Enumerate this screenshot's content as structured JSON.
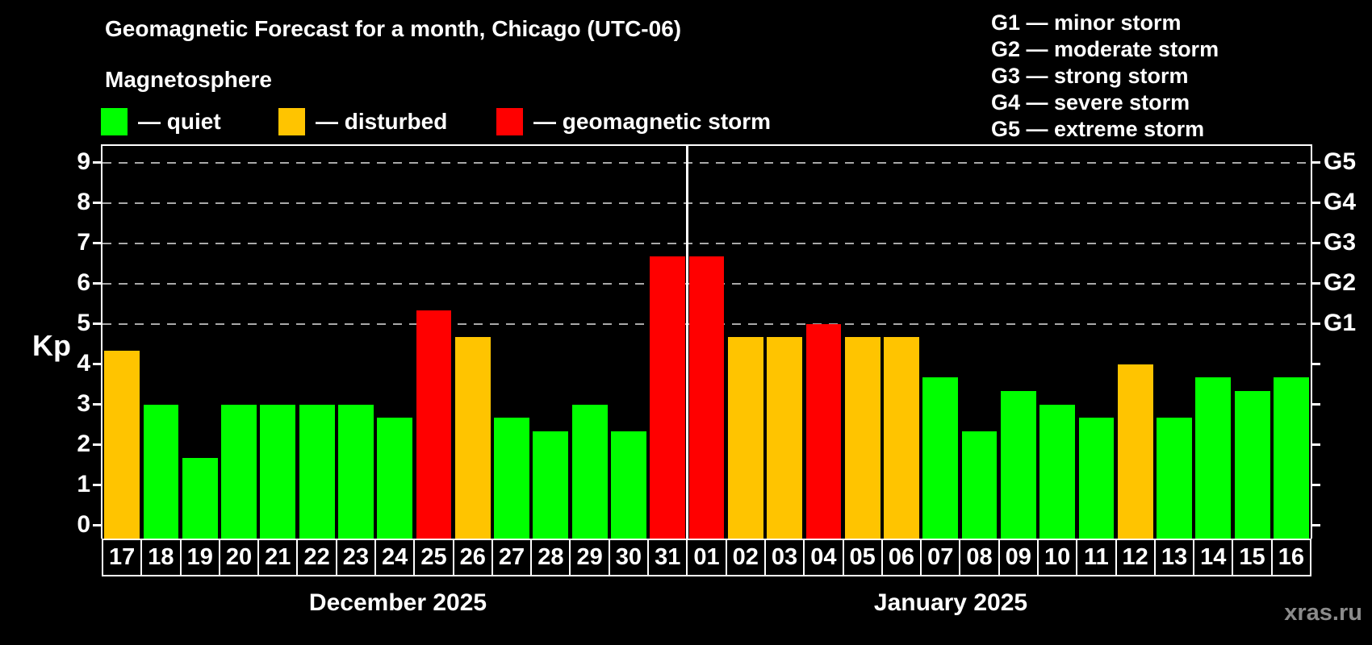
{
  "title": "Geomagnetic Forecast for a month, Chicago (UTC-06)",
  "subtitle": "Magnetosphere",
  "legend": {
    "items": [
      {
        "label": "— quiet",
        "status": "quiet"
      },
      {
        "label": "— disturbed",
        "status": "disturbed"
      },
      {
        "label": "— geomagnetic storm",
        "status": "storm"
      }
    ]
  },
  "storm_scale": [
    "G1 — minor storm",
    "G2 — moderate storm",
    "G3 — strong storm",
    "G4 — severe storm",
    "G5 — extreme storm"
  ],
  "colors": {
    "quiet": "#00ff00",
    "disturbed": "#ffc400",
    "storm": "#ff0000",
    "frame": "#ffffff",
    "gridline": "#a9a9a9",
    "background": "#000000"
  },
  "y_axis": {
    "label": "Kp",
    "ticks": [
      "0",
      "1",
      "2",
      "3",
      "4",
      "5",
      "6",
      "7",
      "8",
      "9"
    ]
  },
  "right_axis": {
    "labels": [
      {
        "text": "G1",
        "kp": 5
      },
      {
        "text": "G2",
        "kp": 6
      },
      {
        "text": "G3",
        "kp": 7
      },
      {
        "text": "G4",
        "kp": 8
      },
      {
        "text": "G5",
        "kp": 9
      }
    ]
  },
  "watermark": "xras.ru",
  "chart_data": {
    "type": "bar",
    "title": "Geomagnetic Forecast for a month, Chicago (UTC-06)",
    "ylabel": "Kp",
    "ylim": [
      0,
      9
    ],
    "grid": "dashed horizontal at G-storm levels",
    "gridlines_at": [
      5,
      6,
      7,
      8,
      9
    ],
    "months": [
      {
        "label": "December 2025",
        "count": 15
      },
      {
        "label": "January 2025",
        "count": 16
      }
    ],
    "bars": [
      {
        "day": "17",
        "month": "December 2025",
        "kp": 4.33,
        "status": "disturbed"
      },
      {
        "day": "18",
        "month": "December 2025",
        "kp": 3.0,
        "status": "quiet"
      },
      {
        "day": "19",
        "month": "December 2025",
        "kp": 1.67,
        "status": "quiet"
      },
      {
        "day": "20",
        "month": "December 2025",
        "kp": 3.0,
        "status": "quiet"
      },
      {
        "day": "21",
        "month": "December 2025",
        "kp": 3.0,
        "status": "quiet"
      },
      {
        "day": "22",
        "month": "December 2025",
        "kp": 3.0,
        "status": "quiet"
      },
      {
        "day": "23",
        "month": "December 2025",
        "kp": 3.0,
        "status": "quiet"
      },
      {
        "day": "24",
        "month": "December 2025",
        "kp": 2.67,
        "status": "quiet"
      },
      {
        "day": "25",
        "month": "December 2025",
        "kp": 5.33,
        "status": "storm"
      },
      {
        "day": "26",
        "month": "December 2025",
        "kp": 4.67,
        "status": "disturbed"
      },
      {
        "day": "27",
        "month": "December 2025",
        "kp": 2.67,
        "status": "quiet"
      },
      {
        "day": "28",
        "month": "December 2025",
        "kp": 2.33,
        "status": "quiet"
      },
      {
        "day": "29",
        "month": "December 2025",
        "kp": 3.0,
        "status": "quiet"
      },
      {
        "day": "30",
        "month": "December 2025",
        "kp": 2.33,
        "status": "quiet"
      },
      {
        "day": "31",
        "month": "December 2025",
        "kp": 6.67,
        "status": "storm"
      },
      {
        "day": "01",
        "month": "January 2025",
        "kp": 6.67,
        "status": "storm"
      },
      {
        "day": "02",
        "month": "January 2025",
        "kp": 4.67,
        "status": "disturbed"
      },
      {
        "day": "03",
        "month": "January 2025",
        "kp": 4.67,
        "status": "disturbed"
      },
      {
        "day": "04",
        "month": "January 2025",
        "kp": 5.0,
        "status": "storm"
      },
      {
        "day": "05",
        "month": "January 2025",
        "kp": 4.67,
        "status": "disturbed"
      },
      {
        "day": "06",
        "month": "January 2025",
        "kp": 4.67,
        "status": "disturbed"
      },
      {
        "day": "07",
        "month": "January 2025",
        "kp": 3.67,
        "status": "quiet"
      },
      {
        "day": "08",
        "month": "January 2025",
        "kp": 2.33,
        "status": "quiet"
      },
      {
        "day": "09",
        "month": "January 2025",
        "kp": 3.33,
        "status": "quiet"
      },
      {
        "day": "10",
        "month": "January 2025",
        "kp": 3.0,
        "status": "quiet"
      },
      {
        "day": "11",
        "month": "January 2025",
        "kp": 2.67,
        "status": "quiet"
      },
      {
        "day": "12",
        "month": "January 2025",
        "kp": 4.0,
        "status": "disturbed"
      },
      {
        "day": "13",
        "month": "January 2025",
        "kp": 2.67,
        "status": "quiet"
      },
      {
        "day": "14",
        "month": "January 2025",
        "kp": 3.67,
        "status": "quiet"
      },
      {
        "day": "15",
        "month": "January 2025",
        "kp": 3.33,
        "status": "quiet"
      },
      {
        "day": "16",
        "month": "January 2025",
        "kp": 3.67,
        "status": "quiet"
      }
    ]
  }
}
